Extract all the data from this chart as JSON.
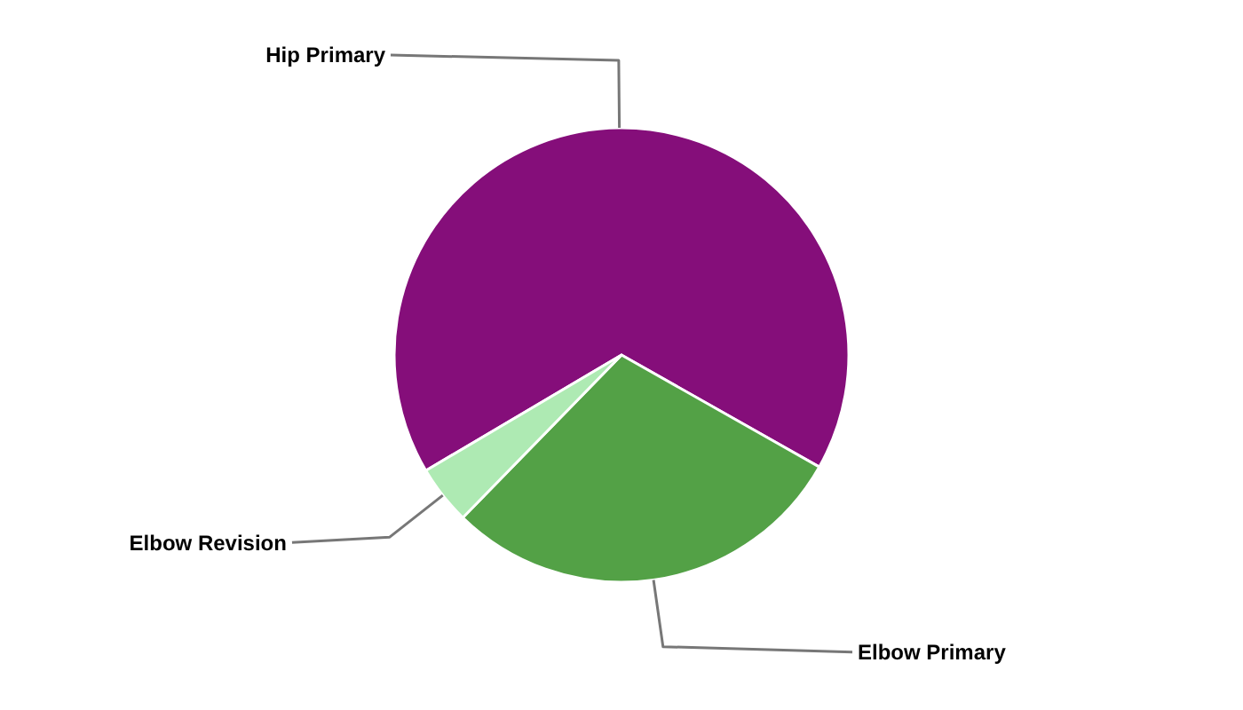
{
  "chart_data": {
    "type": "pie",
    "categories": [
      "Hip Primary",
      "Elbow Primary",
      "Elbow Revision"
    ],
    "values": [
      66.7,
      29.1,
      4.2
    ],
    "colors": [
      "#850e7a",
      "#53a146",
      "#aeeab3"
    ]
  }
}
